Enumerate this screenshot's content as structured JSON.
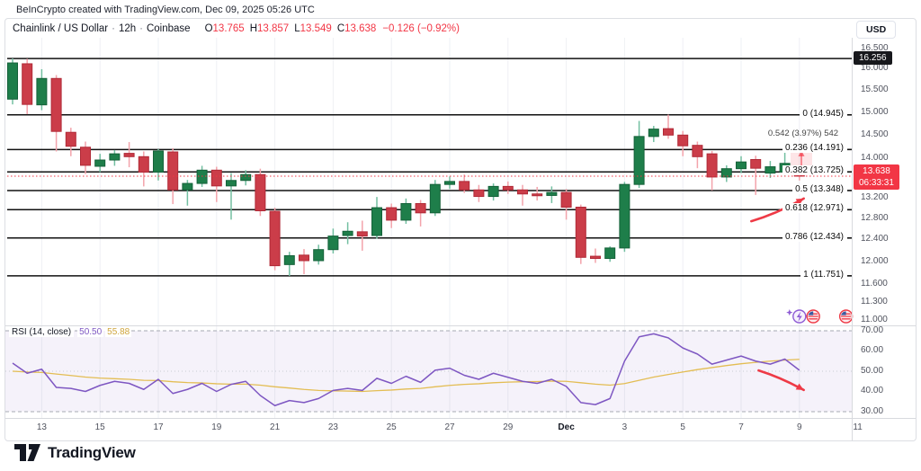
{
  "header": {
    "attribution": "BeInCrypto created with TradingView.com, Dec 09, 2025 05:26 UTC",
    "currency_label": "USD"
  },
  "symbol_row": {
    "name": "Chainlink / US Dollar",
    "separator": "·",
    "interval": "12h",
    "exchange": "Coinbase",
    "ohlc": {
      "o_label": "O",
      "o": "13.765",
      "h_label": "H",
      "h": "13.857",
      "l_label": "L",
      "l": "13.549",
      "c_label": "C",
      "c": "13.638",
      "change": "−0.126 (−0.92%)"
    }
  },
  "price_axis": {
    "ticks": [
      {
        "label": "16.500",
        "value": 16.5
      },
      {
        "label": "16.000",
        "value": 16.0
      },
      {
        "label": "15.500",
        "value": 15.5
      },
      {
        "label": "15.000",
        "value": 15.0
      },
      {
        "label": "14.500",
        "value": 14.5
      },
      {
        "label": "14.000",
        "value": 14.0
      },
      {
        "label": "13.200",
        "value": 13.2
      },
      {
        "label": "12.800",
        "value": 12.8
      },
      {
        "label": "12.400",
        "value": 12.4
      },
      {
        "label": "12.000",
        "value": 12.0
      },
      {
        "label": "11.600",
        "value": 11.6
      },
      {
        "label": "11.300",
        "value": 11.3
      },
      {
        "label": "11.000",
        "value": 11.0
      }
    ],
    "high_badge": {
      "label": "16.256",
      "value": 16.256
    },
    "last_price_badge": {
      "price": "13.638",
      "countdown": "06:33:31",
      "value": 13.638
    }
  },
  "rsi_pane": {
    "title": "RSI (14, close)",
    "value": "50.50",
    "ma_value": "55.88",
    "axis_ticks": [
      {
        "label": "70.00",
        "value": 70
      },
      {
        "label": "60.00",
        "value": 60
      },
      {
        "label": "50.00",
        "value": 50
      },
      {
        "label": "40.00",
        "value": 40
      },
      {
        "label": "30.00",
        "value": 30
      }
    ]
  },
  "time_axis": {
    "ticks": [
      {
        "label": "13",
        "index": 2
      },
      {
        "label": "15",
        "index": 6
      },
      {
        "label": "17",
        "index": 10
      },
      {
        "label": "19",
        "index": 14
      },
      {
        "label": "21",
        "index": 18
      },
      {
        "label": "23",
        "index": 22
      },
      {
        "label": "25",
        "index": 26
      },
      {
        "label": "27",
        "index": 30
      },
      {
        "label": "29",
        "index": 34
      },
      {
        "label": "Dec",
        "index": 38,
        "bold": true
      },
      {
        "label": "3",
        "index": 42
      },
      {
        "label": "5",
        "index": 46
      },
      {
        "label": "7",
        "index": 50
      },
      {
        "label": "9",
        "index": 54
      },
      {
        "label": "11",
        "index": 58
      }
    ]
  },
  "footer": {
    "logo_text": "TradingView"
  },
  "colors": {
    "up": "#1e7e4a",
    "up_border": "#156139",
    "up_wick": "#72bfa1",
    "down": "#cb3d49",
    "down_border": "#b02a37",
    "down_wick": "#f3a3ab",
    "accent_red": "#f23645",
    "fib_line": "#111111",
    "grid": "#eef0f4",
    "separator": "#d8dade",
    "axis_text": "#50535e",
    "rsi": "#7e57c2",
    "rsi_ma": "#e3bd53",
    "rsi_band": "rgba(126,87,194,0.08)",
    "band_line": "#a6a9b3",
    "mid_line": "#c9ccd3",
    "arrow": "#ee3a46",
    "badge_black": "#17181c",
    "event_purple": "#8e5bd4",
    "flag_blue": "#3c5ba0"
  },
  "chart_data": {
    "type": "candlestick",
    "title": "Chainlink / US Dollar · 12h · Coinbase",
    "scale": "logarithmic",
    "price_axis_range": [
      11.0,
      16.5
    ],
    "bars_note": "12-hour bars, Nov 12 - Dec 9 2025; OHLC estimated from pixels except final bar (exact from legend)",
    "candles": [
      [
        15.3,
        16.26,
        15.18,
        16.15
      ],
      [
        16.13,
        16.25,
        14.96,
        15.18
      ],
      [
        15.17,
        16.0,
        15.05,
        15.78
      ],
      [
        15.78,
        15.86,
        14.15,
        14.58
      ],
      [
        14.56,
        14.66,
        14.05,
        14.26
      ],
      [
        14.24,
        14.36,
        13.68,
        13.86
      ],
      [
        13.84,
        14.1,
        13.72,
        13.97
      ],
      [
        13.97,
        14.18,
        13.85,
        14.1
      ],
      [
        14.11,
        14.35,
        13.82,
        14.04
      ],
      [
        14.04,
        14.15,
        13.43,
        13.72
      ],
      [
        13.72,
        14.2,
        13.55,
        14.16
      ],
      [
        14.14,
        14.22,
        13.08,
        13.36
      ],
      [
        13.36,
        13.56,
        13.05,
        13.49
      ],
      [
        13.49,
        13.85,
        13.42,
        13.76
      ],
      [
        13.76,
        13.83,
        13.12,
        13.44
      ],
      [
        13.44,
        13.7,
        12.78,
        13.55
      ],
      [
        13.55,
        13.76,
        13.45,
        13.67
      ],
      [
        13.67,
        13.79,
        12.85,
        12.95
      ],
      [
        12.94,
        13.01,
        11.85,
        11.93
      ],
      [
        11.95,
        12.18,
        11.75,
        12.11
      ],
      [
        12.12,
        12.23,
        11.78,
        12.02
      ],
      [
        12.02,
        12.31,
        11.95,
        12.22
      ],
      [
        12.22,
        12.61,
        12.15,
        12.47
      ],
      [
        12.48,
        12.73,
        12.32,
        12.56
      ],
      [
        12.55,
        12.76,
        12.2,
        12.47
      ],
      [
        12.48,
        13.22,
        12.42,
        13.01
      ],
      [
        13.01,
        13.09,
        12.62,
        12.77
      ],
      [
        12.77,
        13.19,
        12.7,
        13.09
      ],
      [
        13.09,
        13.16,
        12.65,
        12.91
      ],
      [
        12.91,
        13.56,
        12.85,
        13.47
      ],
      [
        13.47,
        13.63,
        13.38,
        13.53
      ],
      [
        13.53,
        13.67,
        13.3,
        13.36
      ],
      [
        13.36,
        13.46,
        13.12,
        13.23
      ],
      [
        13.23,
        13.49,
        13.15,
        13.43
      ],
      [
        13.43,
        13.53,
        13.28,
        13.36
      ],
      [
        13.36,
        13.46,
        13.05,
        13.28
      ],
      [
        13.28,
        13.42,
        13.15,
        13.25
      ],
      [
        13.25,
        13.43,
        13.1,
        13.31
      ],
      [
        13.31,
        13.38,
        12.78,
        13.02
      ],
      [
        13.02,
        13.07,
        11.96,
        12.08
      ],
      [
        12.1,
        12.24,
        11.98,
        12.06
      ],
      [
        12.06,
        12.28,
        12.0,
        12.25
      ],
      [
        12.25,
        13.52,
        12.18,
        13.47
      ],
      [
        13.47,
        14.81,
        13.4,
        14.47
      ],
      [
        14.47,
        14.7,
        14.35,
        14.63
      ],
      [
        14.64,
        14.95,
        14.42,
        14.5
      ],
      [
        14.5,
        14.59,
        14.05,
        14.27
      ],
      [
        14.28,
        14.36,
        13.8,
        14.04
      ],
      [
        14.1,
        14.16,
        13.35,
        13.62
      ],
      [
        13.62,
        13.86,
        13.52,
        13.79
      ],
      [
        13.79,
        14.05,
        13.7,
        13.93
      ],
      [
        13.98,
        14.06,
        13.26,
        13.8
      ],
      [
        13.7,
        13.95,
        13.6,
        13.83
      ],
      [
        13.72,
        14.2,
        13.65,
        13.9
      ],
      [
        13.765,
        13.857,
        13.549,
        13.638
      ]
    ],
    "fib_retracement": {
      "levels": [
        {
          "ratio": "0",
          "price": 14.945,
          "label": "0 (14.945)"
        },
        {
          "ratio": "0.236",
          "price": 14.191,
          "label": "0.236 (14.191)"
        },
        {
          "ratio": "0.382",
          "price": 13.725,
          "label": "0.382 (13.725)"
        },
        {
          "ratio": "0.5",
          "price": 13.348,
          "label": "0.5 (13.348)"
        },
        {
          "ratio": "0.618",
          "price": 12.971,
          "label": "0.618 (12.971)"
        },
        {
          "ratio": "0.786",
          "price": 12.434,
          "label": "0.786 (12.434)"
        },
        {
          "ratio": "1",
          "price": 11.751,
          "label": "1 (11.751)"
        }
      ]
    },
    "high_line_price": 16.256,
    "last_price": 13.638,
    "measurement": {
      "label": "0.542 (3.97%) 542",
      "change": 0.542,
      "change_pct": 3.97,
      "from_price": 13.649,
      "to_price": 14.191
    },
    "arrows": [
      {
        "pane": "price",
        "from_bar": 50.7,
        "from_price": 12.75,
        "to_bar": 54.3,
        "to_price": 13.19
      },
      {
        "pane": "rsi",
        "from_bar": 51.2,
        "from_value": 50.4,
        "to_bar": 54.3,
        "to_value": 40.7
      }
    ],
    "event_markers": [
      {
        "icon": "lightning",
        "bar": 54
      },
      {
        "icon": "us-flag",
        "bar": 54.95
      },
      {
        "icon": "us-flag",
        "bar": 57.2
      }
    ],
    "indicator": {
      "name": "RSI (14, close)",
      "length": 14,
      "source": "close",
      "last": 50.5,
      "ma_last": 55.88,
      "bands": [
        70,
        50,
        30
      ],
      "values": [
        54,
        49,
        51,
        42,
        41.5,
        40,
        43,
        45,
        44,
        41,
        46,
        39,
        41,
        44,
        40,
        43.5,
        45,
        38,
        33,
        35.5,
        34.5,
        36.5,
        40.5,
        41.5,
        40.5,
        46.5,
        44,
        47.5,
        44.5,
        50.5,
        51.5,
        48,
        46,
        49,
        47,
        45,
        44,
        46,
        42.5,
        34.5,
        33.5,
        36.5,
        55,
        67,
        68.5,
        66.5,
        61.5,
        58.5,
        53.5,
        55.5,
        57.5,
        55,
        53.5,
        56,
        50.5
      ],
      "ma_values": [
        50.0,
        49.6,
        49.4,
        48.6,
        47.9,
        47.1,
        46.6,
        46.3,
        46.0,
        45.5,
        45.4,
        44.8,
        44.4,
        44.2,
        43.8,
        43.6,
        43.6,
        43.1,
        42.3,
        41.7,
        41.0,
        40.5,
        40.3,
        40.2,
        40.0,
        40.4,
        40.7,
        41.2,
        41.5,
        42.3,
        43.0,
        43.5,
        43.8,
        44.3,
        44.6,
        44.8,
        44.9,
        45.1,
        45.0,
        44.3,
        43.6,
        43.1,
        43.9,
        45.5,
        47.1,
        48.4,
        49.6,
        50.8,
        51.8,
        52.8,
        53.7,
        54.4,
        55.0,
        55.5,
        55.88
      ]
    }
  }
}
